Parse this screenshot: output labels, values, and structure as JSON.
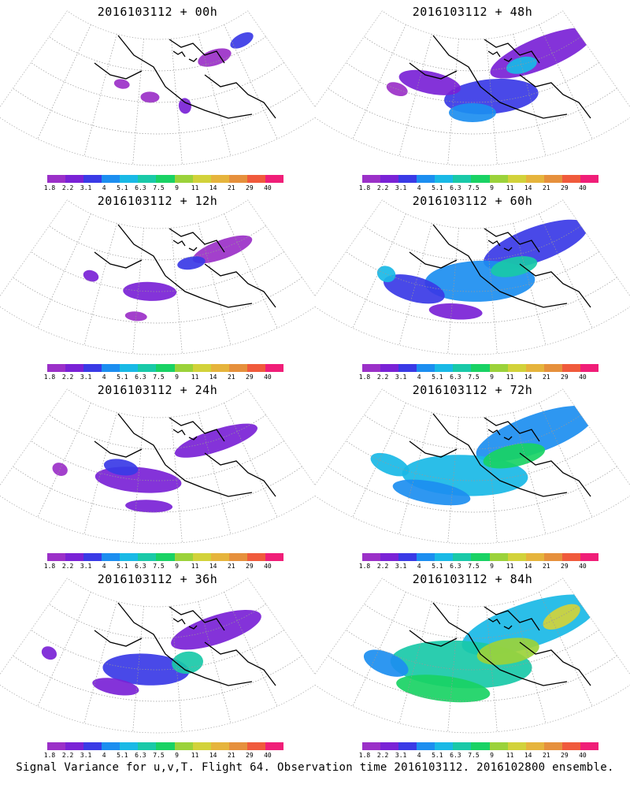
{
  "panels": [
    {
      "title": "2016103112 + 00h",
      "intensity": 0
    },
    {
      "title": "2016103112 + 48h",
      "intensity": 4
    },
    {
      "title": "2016103112 + 12h",
      "intensity": 1
    },
    {
      "title": "2016103112 + 60h",
      "intensity": 5
    },
    {
      "title": "2016103112 + 24h",
      "intensity": 2
    },
    {
      "title": "2016103112 + 72h",
      "intensity": 6
    },
    {
      "title": "2016103112 + 36h",
      "intensity": 3
    },
    {
      "title": "2016103112 + 84h",
      "intensity": 7
    }
  ],
  "colorbar": {
    "labels": [
      "1.8",
      "2.2",
      "3.1",
      "4",
      "5.1",
      "6.3",
      "7.5",
      "9",
      "11",
      "14",
      "21",
      "29",
      "40"
    ],
    "colors": [
      "#9b30c8",
      "#7a22d6",
      "#3a3ae6",
      "#1c8ef0",
      "#19b9e6",
      "#19c9a8",
      "#19d264",
      "#9bd23a",
      "#d2d23a",
      "#e6b43c",
      "#e6903c",
      "#f05a3c",
      "#f01e78"
    ]
  },
  "caption": "Signal Variance for u,v,T. Flight 64. Observation time 2016103112. 2016102800 ensemble."
}
